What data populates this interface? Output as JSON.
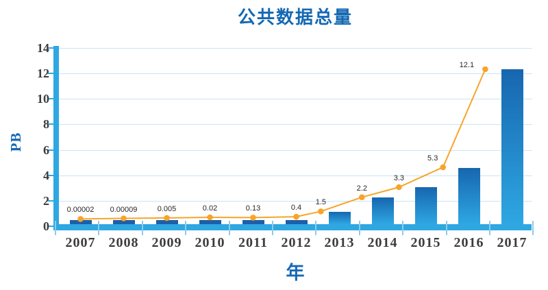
{
  "chart_data": {
    "type": "combo-bar-line",
    "title": "公共数据总量",
    "xlabel": "年",
    "ylabel": "PB",
    "categories": [
      "2007",
      "2008",
      "2009",
      "2010",
      "2011",
      "2012",
      "2013",
      "2014",
      "2015",
      "2016",
      "2017"
    ],
    "line": {
      "values": [
        2e-05,
        9e-05,
        0.005,
        0.02,
        0.13,
        0.4,
        1.5,
        2.2,
        3.3,
        5.3,
        12.1
      ],
      "labels": [
        "0.00002",
        "0.00009",
        "0.005",
        "0.02",
        "0.13",
        "0.4",
        "1.5",
        "2.2",
        "3.3",
        "5.3",
        "12.1"
      ],
      "display_values_pb": [
        0.57,
        0.62,
        0.65,
        0.7,
        0.68,
        0.75,
        1.17,
        2.28,
        3.07,
        4.63,
        12.33
      ]
    },
    "bars": {
      "display_values_pb": [
        0.48,
        0.48,
        0.48,
        0.48,
        0.48,
        0.48,
        1.15,
        2.28,
        3.07,
        4.6,
        12.33
      ]
    },
    "yticks": [
      0,
      2,
      4,
      6,
      8,
      10,
      12,
      14
    ],
    "ylim": [
      0,
      14
    ],
    "grid": "horizontal",
    "legend": "none"
  },
  "colors": {
    "title_blue": "#1568B3",
    "axis_blue": "#2EA7E2",
    "tick_mark_blue": "#8FCBEA",
    "grid_blue": "#C5E6F7",
    "bar_small_dark": "#1D5FA8",
    "bar_gradient_top": "#1766AF",
    "bar_gradient_bottom": "#2EA7E2",
    "line_orange": "#F7A429",
    "axis_text": "#3C3C3C",
    "data_label_text": "#262626"
  }
}
